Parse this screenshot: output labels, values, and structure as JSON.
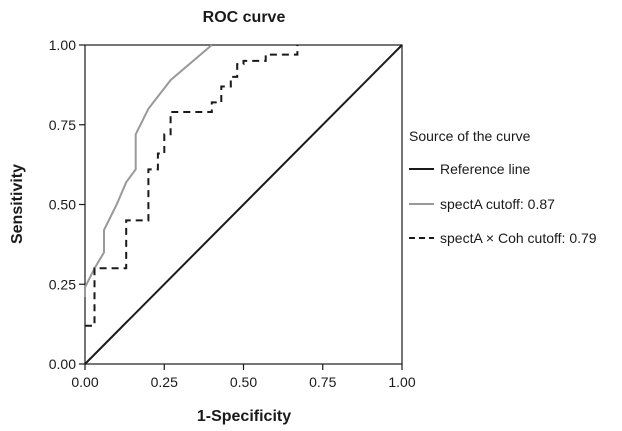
{
  "chart_data": {
    "type": "line",
    "title": "ROC curve",
    "xlabel": "1-Specificity",
    "ylabel": "Sensitivity",
    "xlim": [
      0,
      1
    ],
    "ylim": [
      0,
      1
    ],
    "x_ticks": [
      "0.00",
      "0.25",
      "0.50",
      "0.75",
      "1.00"
    ],
    "y_ticks": [
      "0.00",
      "0.25",
      "0.50",
      "0.75",
      "1.00"
    ],
    "grid": false,
    "legend_title": "Source of the curve",
    "legend_position": "right",
    "series": [
      {
        "name": "Reference line",
        "color": "#1a1a1a",
        "style": "solid",
        "x": [
          0,
          1
        ],
        "y": [
          0,
          1
        ]
      },
      {
        "name": "spectA cutoff: 0.87",
        "color": "#999999",
        "style": "solid",
        "x": [
          0.0,
          0.0,
          0.03,
          0.06,
          0.06,
          0.1,
          0.13,
          0.16,
          0.16,
          0.2,
          0.27,
          0.4
        ],
        "y": [
          0.21,
          0.24,
          0.3,
          0.35,
          0.42,
          0.5,
          0.57,
          0.61,
          0.72,
          0.8,
          0.89,
          1.0
        ]
      },
      {
        "name": "spectA × Coh cutoff: 0.79",
        "color": "#1a1a1a",
        "style": "dashed",
        "x": [
          0.0,
          0.03,
          0.03,
          0.13,
          0.13,
          0.2,
          0.2,
          0.23,
          0.23,
          0.25,
          0.25,
          0.27,
          0.27,
          0.4,
          0.4,
          0.43,
          0.43,
          0.46,
          0.46,
          0.48,
          0.48,
          0.5,
          0.5,
          0.53,
          0.53,
          0.57,
          0.57,
          0.6,
          0.6,
          0.67,
          0.67
        ],
        "y": [
          0.12,
          0.12,
          0.3,
          0.3,
          0.45,
          0.45,
          0.61,
          0.61,
          0.66,
          0.66,
          0.72,
          0.72,
          0.79,
          0.79,
          0.82,
          0.82,
          0.87,
          0.87,
          0.9,
          0.9,
          0.94,
          0.94,
          0.95,
          0.95,
          0.95,
          0.95,
          0.97,
          0.97,
          0.97,
          0.97,
          1.0
        ]
      }
    ]
  }
}
